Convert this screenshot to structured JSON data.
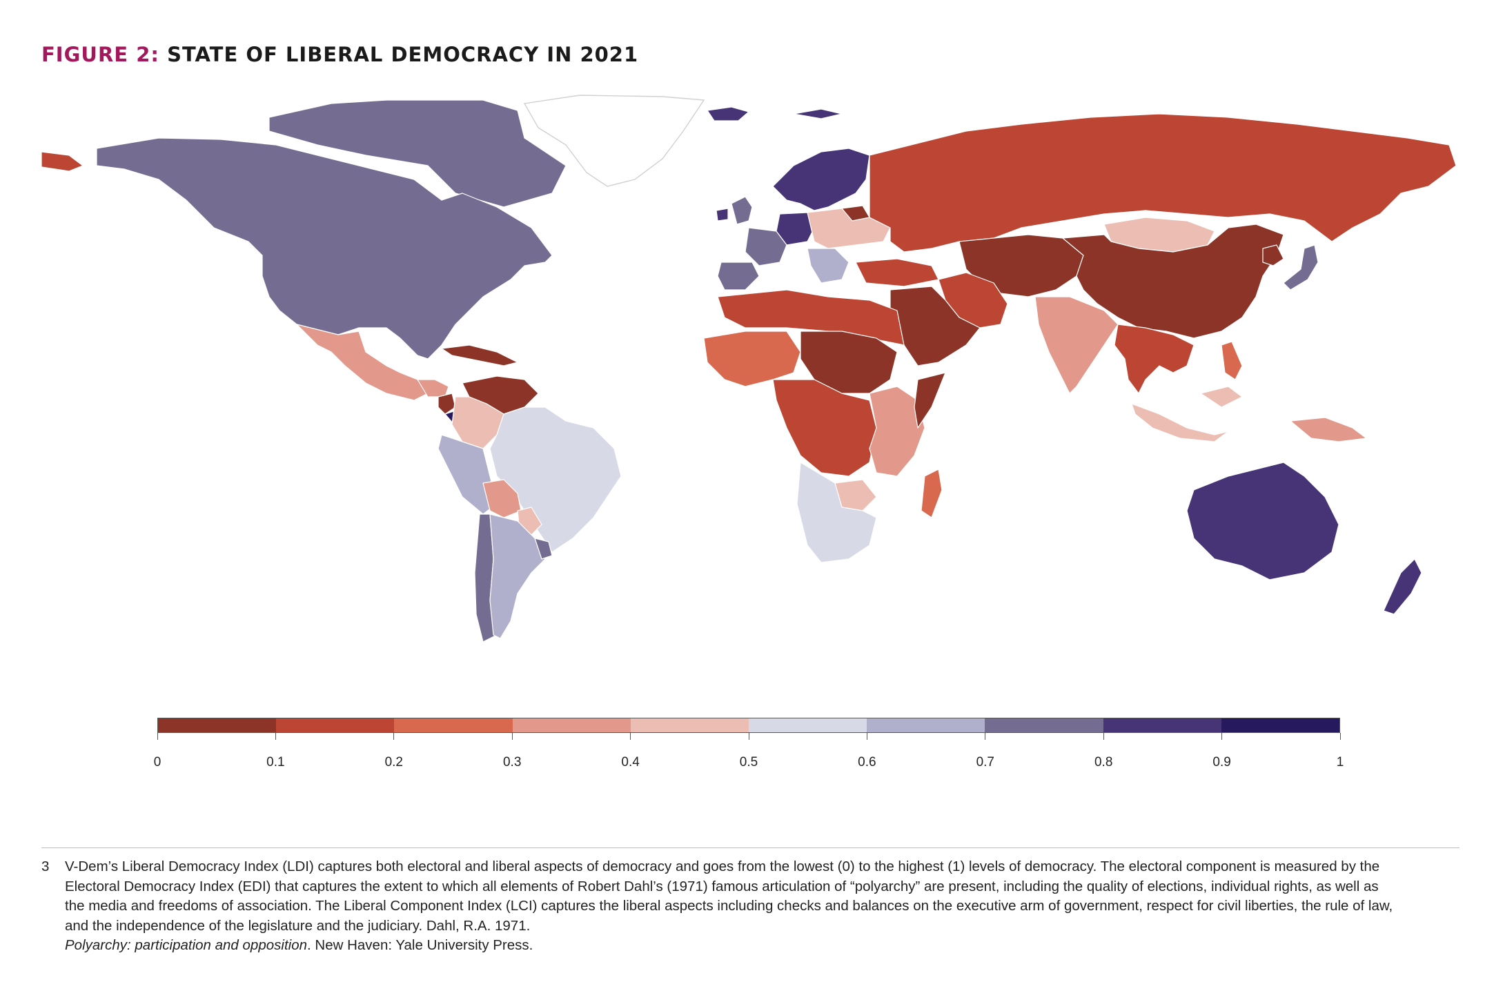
{
  "title": {
    "label": "FIGURE 2:",
    "text": "STATE OF LIBERAL DEMOCRACY IN 2021"
  },
  "legend": {
    "min": 0,
    "max": 1,
    "bins": [
      {
        "from": 0.0,
        "to": 0.1,
        "color": "#8b3427"
      },
      {
        "from": 0.1,
        "to": 0.2,
        "color": "#bc4633"
      },
      {
        "from": 0.2,
        "to": 0.3,
        "color": "#d8694f"
      },
      {
        "from": 0.3,
        "to": 0.4,
        "color": "#e2988a"
      },
      {
        "from": 0.4,
        "to": 0.5,
        "color": "#ecbdb3"
      },
      {
        "from": 0.5,
        "to": 0.6,
        "color": "#d7d9e6"
      },
      {
        "from": 0.6,
        "to": 0.7,
        "color": "#b0b0cd"
      },
      {
        "from": 0.7,
        "to": 0.8,
        "color": "#746d91"
      },
      {
        "from": 0.8,
        "to": 0.9,
        "color": "#463477"
      },
      {
        "from": 0.9,
        "to": 1.0,
        "color": "#27195d"
      }
    ],
    "tick_labels": [
      "0",
      "0.1",
      "0.2",
      "0.3",
      "0.4",
      "0.5",
      "0.6",
      "0.7",
      "0.8",
      "0.9",
      "1"
    ]
  },
  "regions": [
    {
      "id": "north-america",
      "color": "#746d91"
    },
    {
      "id": "canadian-arctic",
      "color": "#746d91"
    },
    {
      "id": "alaska-tip",
      "color": "#bc4633"
    },
    {
      "id": "greenland",
      "color": "#ffffff"
    },
    {
      "id": "mexico",
      "color": "#e2988a"
    },
    {
      "id": "central-america",
      "color": "#e2988a"
    },
    {
      "id": "nicaragua",
      "color": "#8b3427"
    },
    {
      "id": "costa-rica",
      "color": "#27195d"
    },
    {
      "id": "cuba",
      "color": "#8b3427"
    },
    {
      "id": "venezuela",
      "color": "#8b3427"
    },
    {
      "id": "colombia",
      "color": "#ecbdb3"
    },
    {
      "id": "ecuador-peru",
      "color": "#b0b0cd"
    },
    {
      "id": "brazil",
      "color": "#d7d9e6"
    },
    {
      "id": "bolivia",
      "color": "#e2988a"
    },
    {
      "id": "paraguay",
      "color": "#ecbdb3"
    },
    {
      "id": "argentina",
      "color": "#b0b0cd"
    },
    {
      "id": "chile",
      "color": "#746d91"
    },
    {
      "id": "uruguay",
      "color": "#746d91"
    },
    {
      "id": "iceland",
      "color": "#463477"
    },
    {
      "id": "scandinavia",
      "color": "#463477"
    },
    {
      "id": "svalbard",
      "color": "#463477"
    },
    {
      "id": "uk",
      "color": "#746d91"
    },
    {
      "id": "ireland",
      "color": "#463477"
    },
    {
      "id": "western-europe",
      "color": "#746d91"
    },
    {
      "id": "central-europe",
      "color": "#463477"
    },
    {
      "id": "iberia",
      "color": "#746d91"
    },
    {
      "id": "eastern-europe",
      "color": "#ecbdb3"
    },
    {
      "id": "balkans",
      "color": "#b0b0cd"
    },
    {
      "id": "belarus",
      "color": "#8b3427"
    },
    {
      "id": "turkey",
      "color": "#bc4633"
    },
    {
      "id": "russia",
      "color": "#bc4633"
    },
    {
      "id": "central-asia",
      "color": "#8b3427"
    },
    {
      "id": "mongolia",
      "color": "#ecbdb3"
    },
    {
      "id": "china",
      "color": "#8b3427"
    },
    {
      "id": "korea-north",
      "color": "#8b3427"
    },
    {
      "id": "japan",
      "color": "#746d91"
    },
    {
      "id": "iran",
      "color": "#bc4633"
    },
    {
      "id": "middle-east",
      "color": "#8b3427"
    },
    {
      "id": "india",
      "color": "#e2988a"
    },
    {
      "id": "southeast-asia",
      "color": "#bc4633"
    },
    {
      "id": "indonesia",
      "color": "#ecbdb3"
    },
    {
      "id": "philippines",
      "color": "#d8694f"
    },
    {
      "id": "papua",
      "color": "#e2988a"
    },
    {
      "id": "north-africa",
      "color": "#bc4633"
    },
    {
      "id": "sahel",
      "color": "#8b3427"
    },
    {
      "id": "west-africa",
      "color": "#d8694f"
    },
    {
      "id": "central-africa",
      "color": "#bc4633"
    },
    {
      "id": "east-africa",
      "color": "#e2988a"
    },
    {
      "id": "somalia",
      "color": "#8b3427"
    },
    {
      "id": "southern-africa",
      "color": "#d7d9e6"
    },
    {
      "id": "zimbabwe",
      "color": "#ecbdb3"
    },
    {
      "id": "madagascar",
      "color": "#d8694f"
    },
    {
      "id": "australia",
      "color": "#463477"
    },
    {
      "id": "new-zealand",
      "color": "#463477"
    }
  ],
  "footnote": {
    "number": "3",
    "text": "V-Dem’s Liberal Democracy Index (LDI) captures both electoral and liberal aspects of democracy and goes from the lowest (0) to the highest (1) levels of democracy. The electoral component is measured by the Electoral Democracy Index (EDI) that captures the extent to which all elements of Robert Dahl’s (1971) famous articulation of “polyarchy” are present, including the quality of elections, individual rights, as well as the media and freedoms of association. The Liberal Component Index (LCI) captures the liberal aspects including checks and balances on the executive arm of government, respect for civil liberties, the rule of law, and the independence of the legislature and the judiciary. Dahl, R.A. 1971.",
    "citation_title": "Polyarchy: participation and opposition",
    "citation_rest": ". New Haven: Yale University Press."
  }
}
